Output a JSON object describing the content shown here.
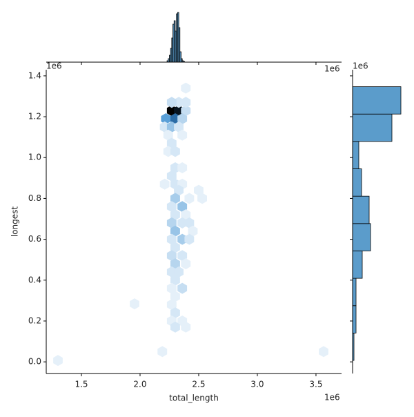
{
  "chart_data": {
    "type": "hexbin",
    "x_label": "total_length",
    "y_label": "longest",
    "x_offset_text": "1e6",
    "y_offset_text": "1e6",
    "xlim": [
      1200000,
      3718000
    ],
    "ylim": [
      -57000,
      1430000
    ],
    "xticks": [
      {
        "value": 1500000,
        "label": "1.5"
      },
      {
        "value": 2000000,
        "label": "2.0"
      },
      {
        "value": 2500000,
        "label": "2.5"
      },
      {
        "value": 3000000,
        "label": "3.0"
      },
      {
        "value": 3500000,
        "label": "3.5"
      }
    ],
    "yticks": [
      {
        "value": 0,
        "label": "0.0"
      },
      {
        "value": 200000,
        "label": "0.2"
      },
      {
        "value": 400000,
        "label": "0.4"
      },
      {
        "value": 600000,
        "label": "0.6"
      },
      {
        "value": 800000,
        "label": "0.8"
      },
      {
        "value": 1000000,
        "label": "1.0"
      },
      {
        "value": 1200000,
        "label": "1.2"
      },
      {
        "value": 1400000,
        "label": "1.4"
      }
    ],
    "cmap": [
      "#f4f9fd",
      "#5aa0d8",
      "#1f5f99",
      "#000000"
    ],
    "clim": [
      0,
      30
    ],
    "hexes": {
      "x": [
        1300000,
        1953000,
        2190000,
        3565000,
        2270000,
        2330000,
        2390000,
        2330000,
        2390000,
        2270000,
        2220000,
        2300000,
        2360000,
        2210000,
        2270000,
        2330000,
        2390000,
        2240000,
        2360000,
        2270000,
        2240000,
        2300000,
        2300000,
        2360000,
        2270000,
        2210000,
        2300000,
        2360000,
        2330000,
        2500000,
        2300000,
        2420000,
        2530000,
        2270000,
        2360000,
        2300000,
        2390000,
        2270000,
        2360000,
        2420000,
        2300000,
        2450000,
        2270000,
        2360000,
        2420000,
        2300000,
        2270000,
        2360000,
        2300000,
        2390000,
        2270000,
        2330000,
        2300000,
        2270000,
        2360000,
        2300000,
        2270000,
        2300000,
        2270000,
        2360000,
        2300000,
        2390000
      ],
      "y": [
        7000,
        284000,
        50000,
        50000,
        1230000,
        1230000,
        1230000,
        1270000,
        1270000,
        1270000,
        1190000,
        1190000,
        1190000,
        1150000,
        1150000,
        1150000,
        1340000,
        1110000,
        1110000,
        1070000,
        1030000,
        1030000,
        950000,
        950000,
        910000,
        870000,
        870000,
        870000,
        840000,
        840000,
        800000,
        800000,
        800000,
        760000,
        760000,
        720000,
        720000,
        680000,
        680000,
        680000,
        640000,
        640000,
        600000,
        600000,
        600000,
        560000,
        520000,
        520000,
        480000,
        480000,
        440000,
        440000,
        400000,
        360000,
        360000,
        320000,
        280000,
        240000,
        200000,
        200000,
        170000,
        170000
      ],
      "counts": [
        1,
        1,
        1,
        1,
        30,
        28,
        3,
        2,
        2,
        3,
        10,
        18,
        4,
        2,
        6,
        2,
        1,
        1,
        1,
        2,
        1,
        2,
        2,
        1,
        2,
        1,
        2,
        1,
        2,
        1,
        5,
        1,
        1,
        2,
        6,
        2,
        1,
        4,
        2,
        2,
        6,
        1,
        2,
        5,
        2,
        2,
        3,
        2,
        4,
        1,
        2,
        2,
        2,
        1,
        3,
        1,
        1,
        2,
        1,
        1,
        2,
        1
      ]
    },
    "marginal_x": {
      "type": "histogram",
      "color": "#5b9ccb",
      "offset_text": "1e6",
      "ylim": [
        0,
        75
      ],
      "bins": [
        2230000,
        2240000,
        2250000,
        2260000,
        2270000,
        2280000,
        2290000,
        2300000,
        2310000,
        2320000,
        2330000,
        2340000,
        2350000,
        2360000,
        2370000,
        2380000
      ],
      "counts": [
        2,
        5,
        10,
        20,
        35,
        55,
        60,
        45,
        70,
        72,
        50,
        15,
        5,
        2,
        1
      ]
    },
    "marginal_y": {
      "type": "histogram",
      "color": "#5b9ccb",
      "offset_text": "1e6",
      "xlim": [
        0,
        72
      ],
      "bins": [
        7000,
        141000,
        275000,
        409000,
        543000,
        677000,
        811000,
        945000,
        1079000,
        1213000,
        1347000
      ],
      "counts": [
        2,
        5,
        5,
        14,
        26,
        24,
        13,
        9,
        57,
        70
      ]
    }
  }
}
